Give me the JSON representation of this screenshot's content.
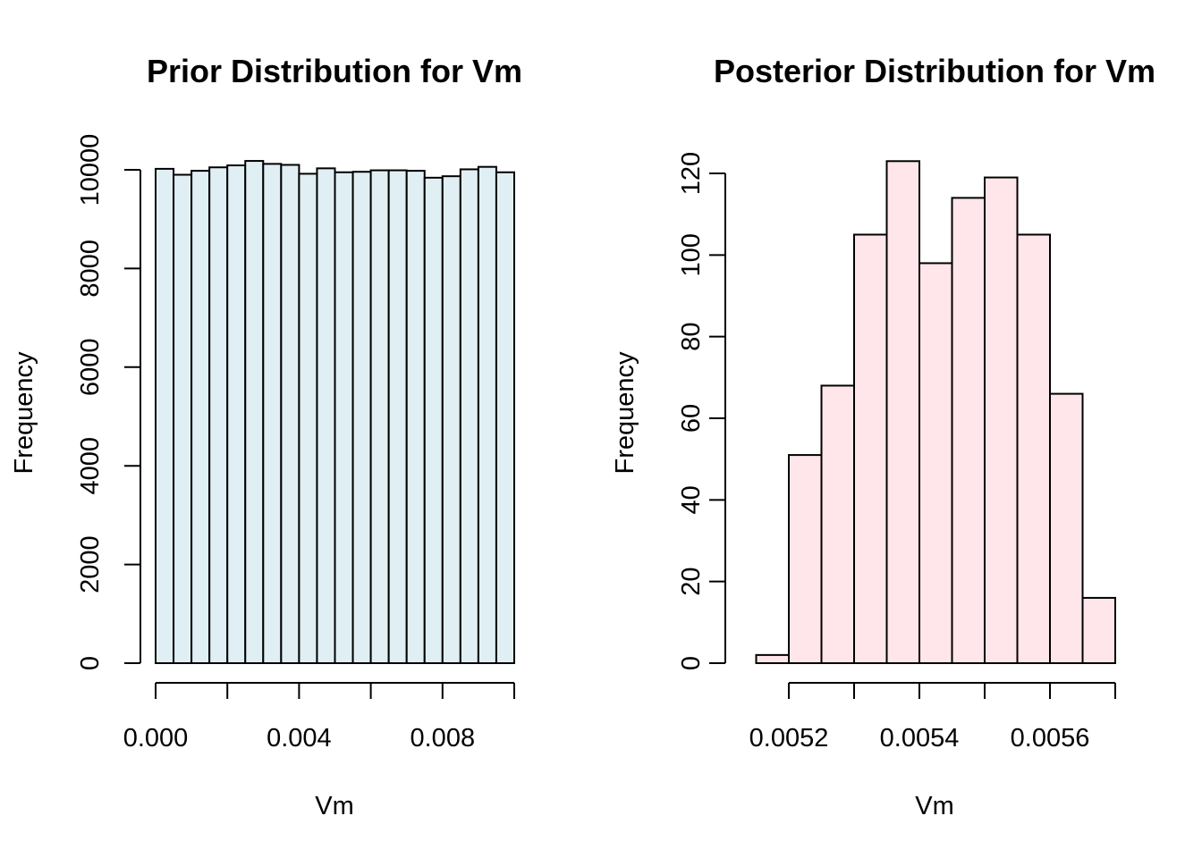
{
  "chart_data": [
    {
      "type": "bar",
      "title": "Prior Distribution for Vm",
      "xlabel": "Vm",
      "ylabel": "Frequency",
      "fill_color": "#e0eff4",
      "bin_edges": [
        0.0,
        0.0005,
        0.001,
        0.0015,
        0.002,
        0.0025,
        0.003,
        0.0035,
        0.004,
        0.0045,
        0.005,
        0.0055,
        0.006,
        0.0065,
        0.007,
        0.0075,
        0.008,
        0.0085,
        0.009,
        0.0095,
        0.01
      ],
      "values": [
        10020,
        9900,
        9980,
        10050,
        10090,
        10180,
        10120,
        10100,
        9920,
        10030,
        9950,
        9960,
        9990,
        9990,
        9980,
        9840,
        9870,
        10010,
        10060,
        9950
      ],
      "xlim": [
        0.0,
        0.01
      ],
      "ylim": [
        0,
        10000
      ],
      "x_ticks": [
        0.0,
        0.002,
        0.004,
        0.006,
        0.008,
        0.01
      ],
      "x_tick_labels": [
        {
          "value": 0.0,
          "label": "0.000"
        },
        {
          "value": 0.004,
          "label": "0.004"
        },
        {
          "value": 0.008,
          "label": "0.008"
        }
      ],
      "y_ticks": [
        0,
        2000,
        4000,
        6000,
        8000,
        10000
      ],
      "y_tick_labels": [
        "0",
        "2000",
        "4000",
        "6000",
        "8000",
        "10000"
      ]
    },
    {
      "type": "bar",
      "title": "Posterior Distribution for Vm",
      "xlabel": "Vm",
      "ylabel": "Frequency",
      "fill_color": "#ffe6ea",
      "bin_edges": [
        0.00515,
        0.0052,
        0.00525,
        0.0053,
        0.00535,
        0.0054,
        0.00545,
        0.0055,
        0.00555,
        0.0056,
        0.00565,
        0.0057
      ],
      "values": [
        2,
        51,
        68,
        105,
        123,
        98,
        114,
        119,
        105,
        66,
        16
      ],
      "xlim": [
        0.0052,
        0.0057
      ],
      "ylim": [
        0,
        120
      ],
      "x_ticks": [
        0.0052,
        0.0053,
        0.0054,
        0.0055,
        0.0056,
        0.0057
      ],
      "x_tick_labels": [
        {
          "value": 0.0052,
          "label": "0.0052"
        },
        {
          "value": 0.0054,
          "label": "0.0054"
        },
        {
          "value": 0.0056,
          "label": "0.0056"
        }
      ],
      "y_ticks": [
        0,
        20,
        40,
        60,
        80,
        100,
        120
      ],
      "y_tick_labels": [
        "0",
        "20",
        "40",
        "60",
        "80",
        "100",
        "120"
      ]
    }
  ]
}
